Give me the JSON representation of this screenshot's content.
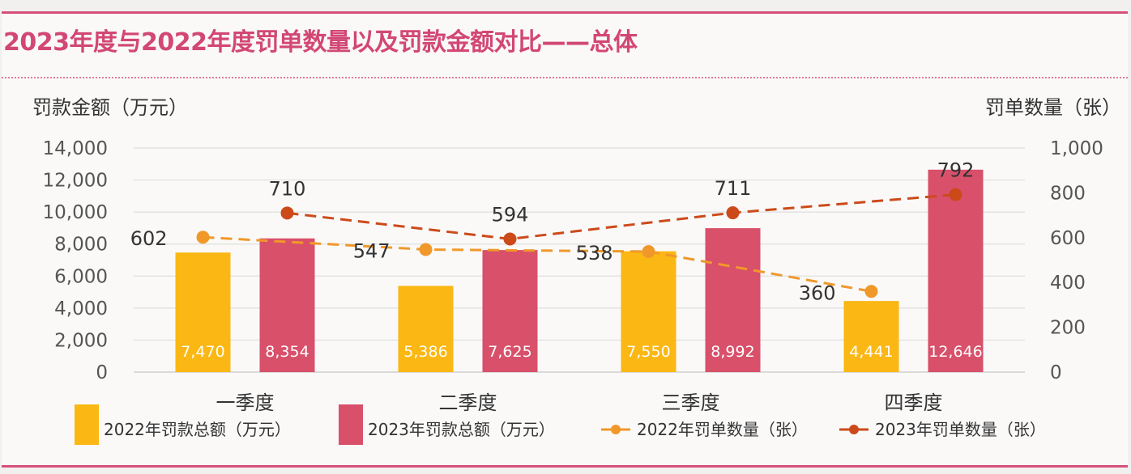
{
  "page": {
    "title": "2023年度与2022年度罚单数量以及罚款金额对比——总体"
  },
  "chart_data": {
    "type": "bar",
    "categories": [
      "一季度",
      "二季度",
      "三季度",
      "四季度"
    ],
    "y_left": {
      "label": "罚款金额（万元）",
      "range": [
        0,
        14000
      ],
      "ticks": [
        "14,000",
        "12,000",
        "10,000",
        "8,000",
        "6,000",
        "4,000",
        "2,000",
        "0"
      ]
    },
    "y_right": {
      "label": "罚单数量（张）",
      "range": [
        0,
        1000
      ],
      "ticks": [
        "1,000",
        "800",
        "600",
        "400",
        "200",
        "0"
      ]
    },
    "grid": true,
    "legend_position": "bottom",
    "series": [
      {
        "name": "2022年罚款总额（万元）",
        "kind": "bar",
        "axis": "left",
        "color": "#fbb713",
        "values": [
          7470,
          5386,
          7550,
          4441
        ],
        "labels": [
          "7,470",
          "5,386",
          "7,550",
          "4,441"
        ]
      },
      {
        "name": "2023年罚款总额（万元）",
        "kind": "bar",
        "axis": "left",
        "color": "#d8506a",
        "values": [
          8354,
          7625,
          8992,
          12646
        ],
        "labels": [
          "8,354",
          "7,625",
          "8,992",
          "12,646"
        ]
      },
      {
        "name": "2022年罚单数量（张）",
        "kind": "line",
        "axis": "right",
        "color": "#f0982a",
        "values": [
          602,
          547,
          538,
          360
        ],
        "labels": [
          "602",
          "547",
          "538",
          "360"
        ]
      },
      {
        "name": "2023年罚单数量（张）",
        "kind": "line",
        "axis": "right",
        "color": "#cc4a1a",
        "values": [
          710,
          594,
          711,
          792
        ],
        "labels": [
          "710",
          "594",
          "711",
          "792"
        ]
      }
    ]
  }
}
